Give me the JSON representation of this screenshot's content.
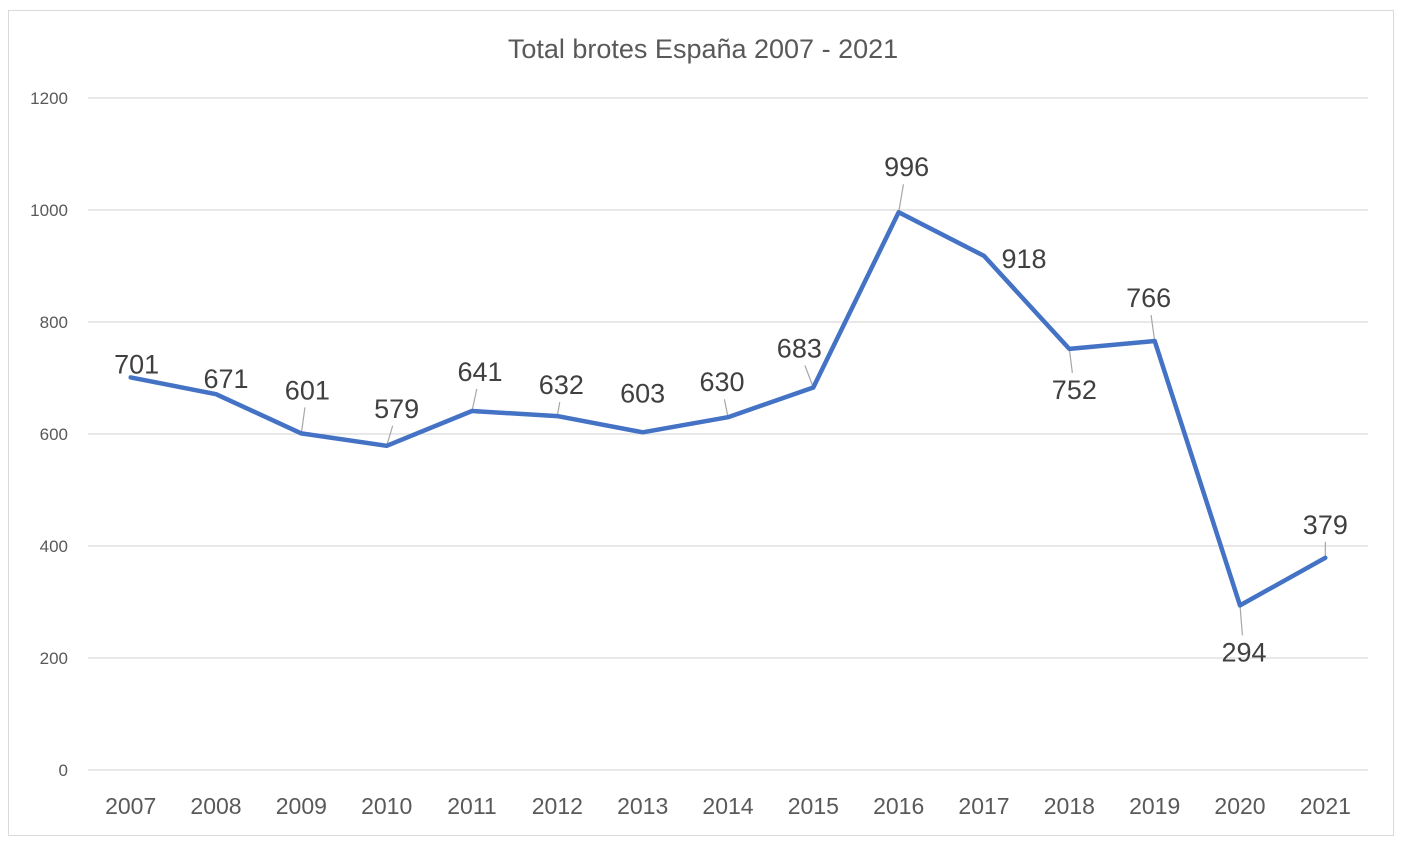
{
  "chart_data": {
    "type": "line",
    "title": "Total brotes España 2007 - 2021",
    "xlabel": "",
    "ylabel": "",
    "categories": [
      "2007",
      "2008",
      "2009",
      "2010",
      "2011",
      "2012",
      "2013",
      "2014",
      "2015",
      "2016",
      "2017",
      "2018",
      "2019",
      "2020",
      "2021"
    ],
    "series": [
      {
        "values": [
          701,
          671,
          601,
          579,
          641,
          632,
          603,
          630,
          683,
          996,
          918,
          752,
          766,
          294,
          379
        ],
        "color": "#4472c4",
        "data_labels": true
      }
    ],
    "ylim": [
      0,
      1200
    ],
    "yticks": [
      0,
      200,
      400,
      600,
      800,
      1000,
      1200
    ],
    "grid": true,
    "legend": "none"
  }
}
